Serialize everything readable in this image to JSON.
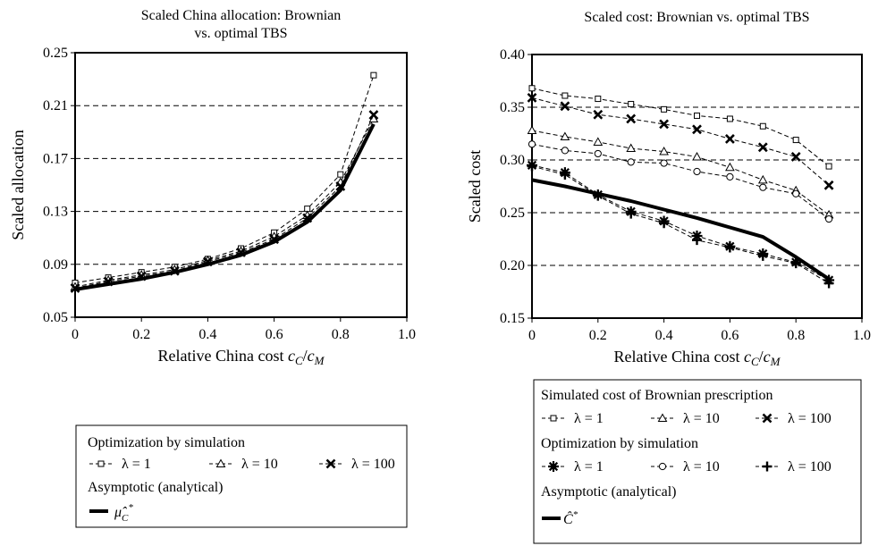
{
  "chart_data": [
    {
      "type": "line",
      "title": "Scaled China allocation: Brownian vs. optimal TBS",
      "title_lines": [
        "Scaled China allocation: Brownian",
        "vs. optimal TBS"
      ],
      "xlabel": "Relative China cost",
      "xlabel_math": [
        "c",
        "C",
        "/",
        "c",
        "M"
      ],
      "ylabel": "Scaled allocation",
      "xlim": [
        0,
        1.0
      ],
      "ylim": [
        0.05,
        0.25
      ],
      "xticks": [
        "0",
        "0.2",
        "0.4",
        "0.6",
        "0.8",
        "1.0"
      ],
      "yticks": [
        "0.05",
        "0.09",
        "0.13",
        "0.17",
        "0.21",
        "0.25"
      ],
      "grid": "horizontal dashed",
      "series": [
        {
          "group": 0,
          "label": "λ = 1",
          "style": "dashed",
          "marker": "square",
          "x": [
            0,
            0.1,
            0.2,
            0.3,
            0.4,
            0.5,
            0.6,
            0.7,
            0.8,
            0.9
          ],
          "y": [
            0.076,
            0.08,
            0.084,
            0.088,
            0.094,
            0.102,
            0.114,
            0.132,
            0.158,
            0.233
          ]
        },
        {
          "group": 0,
          "label": "λ = 10",
          "style": "dashed",
          "marker": "triangle",
          "x": [
            0,
            0.1,
            0.2,
            0.3,
            0.4,
            0.5,
            0.6,
            0.7,
            0.8,
            0.9
          ],
          "y": [
            0.073,
            0.078,
            0.082,
            0.086,
            0.093,
            0.1,
            0.111,
            0.127,
            0.152,
            0.2
          ]
        },
        {
          "group": 0,
          "label": "λ = 100",
          "style": "dashed",
          "marker": "x",
          "x": [
            0,
            0.1,
            0.2,
            0.3,
            0.4,
            0.5,
            0.6,
            0.7,
            0.8,
            0.9
          ],
          "y": [
            0.072,
            0.077,
            0.081,
            0.085,
            0.092,
            0.099,
            0.109,
            0.125,
            0.149,
            0.203
          ]
        },
        {
          "group": 1,
          "label": "",
          "style": "solid-thick",
          "marker": "none",
          "x": [
            0,
            0.1,
            0.2,
            0.3,
            0.4,
            0.5,
            0.6,
            0.7,
            0.8,
            0.9
          ],
          "y": [
            0.071,
            0.075,
            0.079,
            0.084,
            0.09,
            0.097,
            0.107,
            0.122,
            0.146,
            0.196
          ]
        }
      ],
      "legend": {
        "placement": "bottom",
        "groups": [
          {
            "heading": "Optimization by simulation"
          },
          {
            "heading": "Asymptotic (analytical)",
            "symbol": [
              "μ̂",
              "C",
              "*"
            ]
          }
        ]
      }
    },
    {
      "type": "line",
      "title": "Scaled cost: Brownian vs. optimal TBS",
      "title_lines": [
        "Scaled cost: Brownian vs. optimal TBS"
      ],
      "xlabel": "Relative China cost",
      "xlabel_math": [
        "c",
        "C",
        "/",
        "c",
        "M"
      ],
      "ylabel": "Scaled  cost",
      "xlim": [
        0,
        1.0
      ],
      "ylim": [
        0.15,
        0.4
      ],
      "xticks": [
        "0",
        "0.2",
        "0.4",
        "0.6",
        "0.8",
        "1.0"
      ],
      "yticks": [
        "0.15",
        "0.20",
        "0.25",
        "0.30",
        "0.35",
        "0.40"
      ],
      "grid": "horizontal dashed",
      "series": [
        {
          "group": 0,
          "label": "λ = 1",
          "style": "dashed",
          "marker": "square",
          "x": [
            0,
            0.1,
            0.2,
            0.3,
            0.4,
            0.5,
            0.6,
            0.7,
            0.8,
            0.9
          ],
          "y": [
            0.368,
            0.361,
            0.358,
            0.353,
            0.348,
            0.342,
            0.339,
            0.332,
            0.319,
            0.294
          ]
        },
        {
          "group": 0,
          "label": "λ = 10",
          "style": "dashed",
          "marker": "triangle",
          "x": [
            0,
            0.1,
            0.2,
            0.3,
            0.4,
            0.5,
            0.6,
            0.7,
            0.8,
            0.9
          ],
          "y": [
            0.328,
            0.322,
            0.317,
            0.311,
            0.308,
            0.303,
            0.293,
            0.281,
            0.271,
            0.248
          ]
        },
        {
          "group": 0,
          "label": "λ = 100",
          "style": "dashed",
          "marker": "x",
          "x": [
            0,
            0.1,
            0.2,
            0.3,
            0.4,
            0.5,
            0.6,
            0.7,
            0.8,
            0.9
          ],
          "y": [
            0.359,
            0.351,
            0.343,
            0.339,
            0.334,
            0.329,
            0.32,
            0.312,
            0.303,
            0.276
          ]
        },
        {
          "group": 1,
          "label": "λ = 1",
          "style": "dashed",
          "marker": "asterisk",
          "x": [
            0,
            0.1,
            0.2,
            0.3,
            0.4,
            0.5,
            0.6,
            0.7,
            0.8,
            0.9
          ],
          "y": [
            0.295,
            0.288,
            0.267,
            0.251,
            0.242,
            0.228,
            0.218,
            0.211,
            0.203,
            0.186
          ]
        },
        {
          "group": 1,
          "label": "λ = 10",
          "style": "dashed",
          "marker": "circle",
          "x": [
            0,
            0.1,
            0.2,
            0.3,
            0.4,
            0.5,
            0.6,
            0.7,
            0.8,
            0.9
          ],
          "y": [
            0.315,
            0.309,
            0.306,
            0.298,
            0.297,
            0.289,
            0.284,
            0.274,
            0.268,
            0.244
          ]
        },
        {
          "group": 1,
          "label": "λ = 100",
          "style": "dashed",
          "marker": "plus",
          "x": [
            0,
            0.1,
            0.2,
            0.3,
            0.4,
            0.5,
            0.6,
            0.7,
            0.8,
            0.9
          ],
          "y": [
            0.294,
            0.286,
            0.266,
            0.249,
            0.24,
            0.224,
            0.217,
            0.209,
            0.202,
            0.183
          ]
        },
        {
          "group": 2,
          "label": "",
          "style": "solid-thick",
          "marker": "none",
          "x": [
            0,
            0.1,
            0.2,
            0.3,
            0.4,
            0.5,
            0.6,
            0.7,
            0.8,
            0.9
          ],
          "y": [
            0.281,
            0.275,
            0.268,
            0.261,
            0.253,
            0.245,
            0.236,
            0.227,
            0.208,
            0.187
          ]
        }
      ],
      "legend": {
        "placement": "bottom",
        "groups": [
          {
            "heading": "Simulated  cost of Brownian prescription"
          },
          {
            "heading": "Optimization by simulation"
          },
          {
            "heading": "Asymptotic (analytical)",
            "symbol": [
              "Ĉ",
              "",
              "*"
            ]
          }
        ]
      }
    }
  ]
}
